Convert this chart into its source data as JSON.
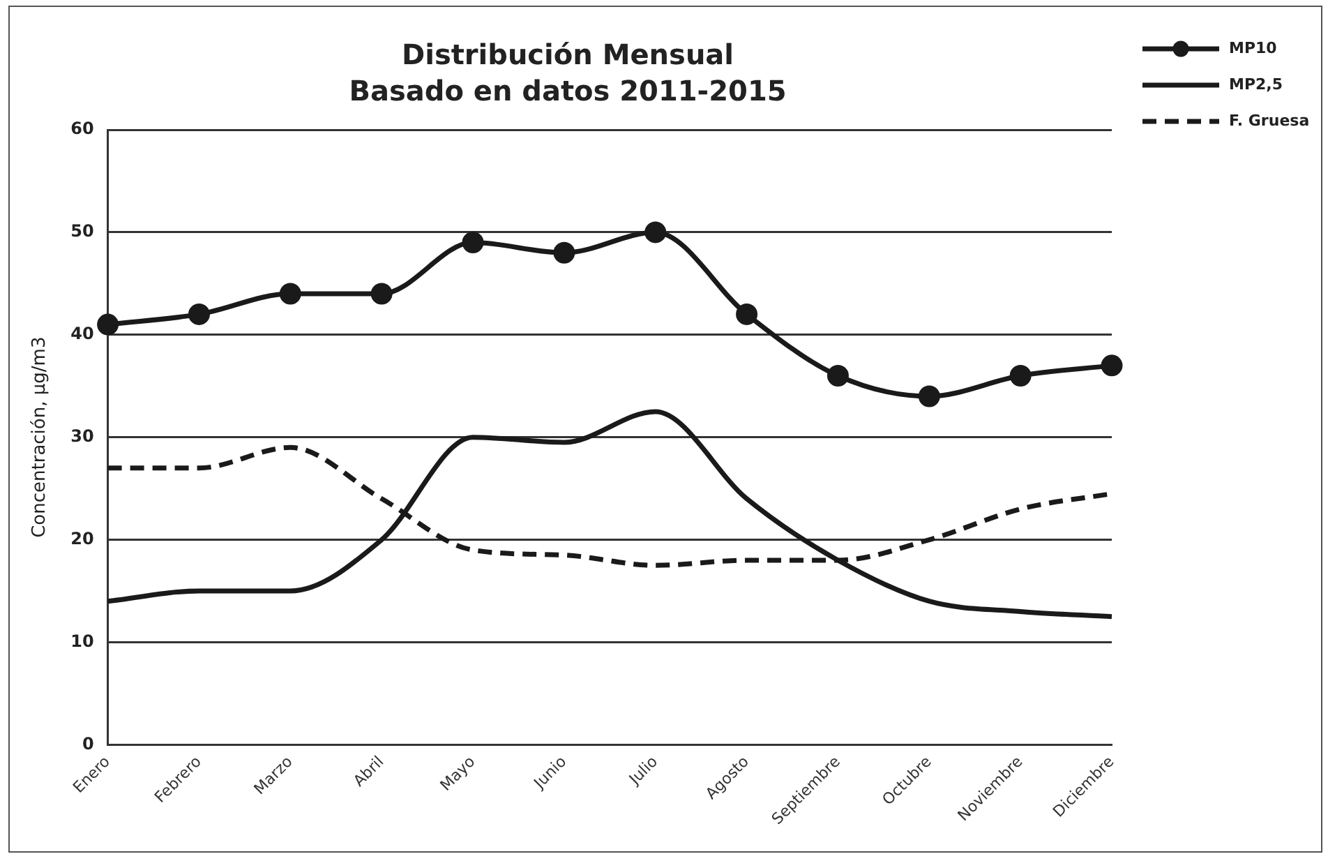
{
  "chart_data": {
    "type": "line",
    "title": "Distribución Mensual",
    "subtitle": "Basado en datos 2011-2015",
    "ylabel": "Concentración, µg/m3",
    "categories": [
      "Enero",
      "Febrero",
      "Marzo",
      "Abril",
      "Mayo",
      "Junio",
      "Julio",
      "Agosto",
      "Septiembre",
      "Octubre",
      "Noviembre",
      "Diciembre"
    ],
    "series": [
      {
        "name": "MP10",
        "color": "#1a1a1a",
        "marker": "circle",
        "line_style": "solid",
        "values": [
          41,
          42,
          44,
          44,
          49,
          48,
          50,
          42,
          36,
          34,
          36,
          37
        ]
      },
      {
        "name": "MP2,5",
        "color": "#1a1a1a",
        "marker": "none",
        "line_style": "solid",
        "values": [
          14,
          15,
          15,
          20,
          30,
          29.5,
          32.5,
          24,
          18,
          14,
          13,
          12.5
        ]
      },
      {
        "name": "F. Gruesa",
        "color": "#1a1a1a",
        "marker": "none",
        "line_style": "dashed",
        "values": [
          27,
          27,
          29,
          24,
          19,
          18.5,
          17.5,
          18,
          18,
          20,
          23,
          24.5
        ]
      }
    ],
    "ylim": [
      0,
      60
    ],
    "yticks": [
      0,
      10,
      20,
      30,
      40,
      50,
      60
    ],
    "grid": "y",
    "legend": "top right"
  }
}
